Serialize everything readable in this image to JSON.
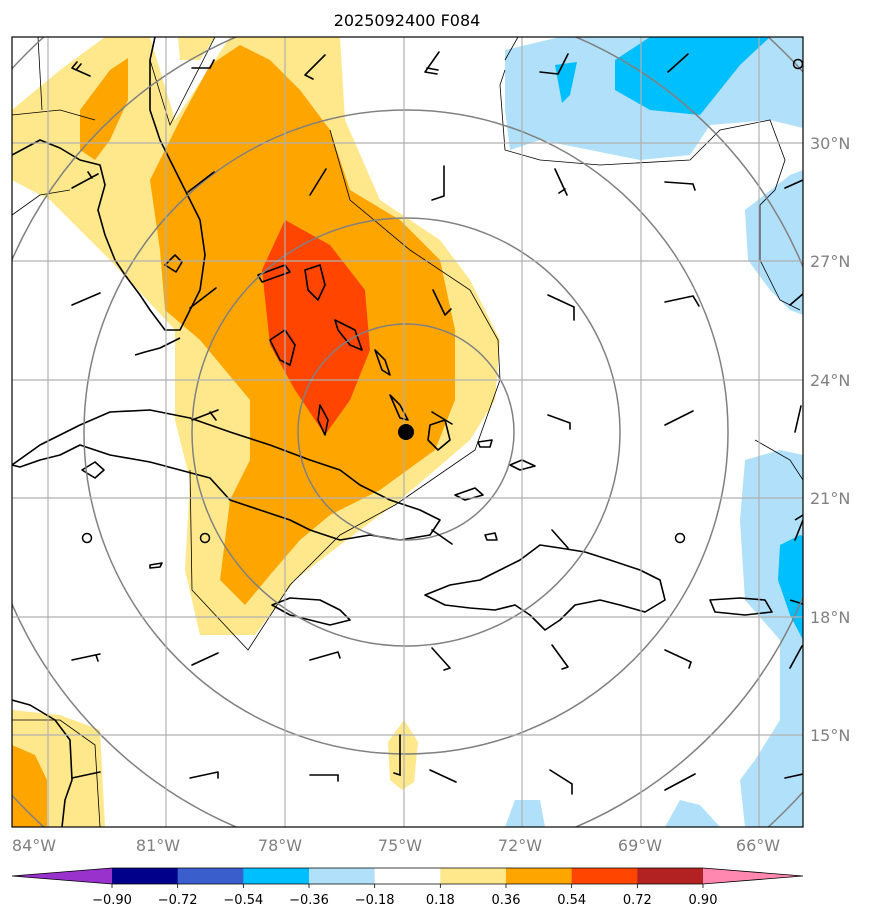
{
  "title": "2025092400 F084",
  "longitude_labels": [
    "84°W",
    "81°W",
    "78°W",
    "75°W",
    "72°W",
    "69°W",
    "66°W"
  ],
  "latitude_labels": [
    "30°N",
    "27°N",
    "24°N",
    "21°N",
    "18°N",
    "15°N"
  ],
  "colorbar": {
    "ticks": [
      "−0.90",
      "−0.72",
      "−0.54",
      "−0.36",
      "−0.18",
      "0.18",
      "0.36",
      "0.54",
      "0.72",
      "0.90"
    ],
    "colors": [
      "#9932cc",
      "#00008b",
      "#3a5fcd",
      "#00bfff",
      "#b0e0fa",
      "#ffffff",
      "#ffe88c",
      "#ffa500",
      "#ff4500",
      "#b22222",
      "#ff88b0"
    ]
  },
  "storm_center": {
    "lon": -75.0,
    "lat": 22.7
  },
  "range_rings_deg": [
    3,
    5,
    7,
    9,
    11
  ]
}
